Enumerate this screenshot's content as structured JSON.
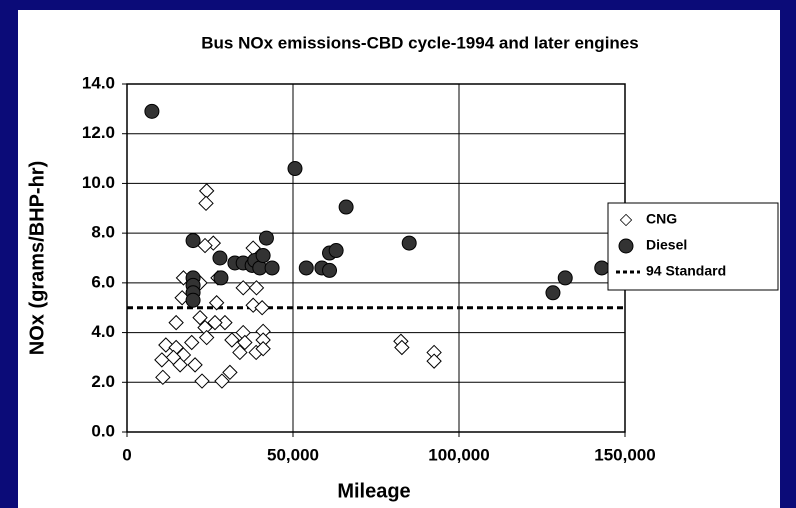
{
  "chart_data": {
    "type": "scatter",
    "title": "Bus NOx emissions-CBD cycle-1994 and later engines",
    "x_label": "Mileage",
    "y_label": "NOx (grams/BHP-hr)",
    "xlim": [
      0,
      150000
    ],
    "ylim": [
      0,
      14
    ],
    "xticks": [
      0,
      {
        "value": 50000,
        "label": "50,000"
      },
      {
        "value": 100000,
        "label": "100,000"
      },
      {
        "value": 150000,
        "label": "150,000"
      }
    ],
    "yticks": [
      {
        "value": 0,
        "label": "0.0"
      },
      {
        "value": 2,
        "label": "2.0"
      },
      {
        "value": 4,
        "label": "4.0"
      },
      {
        "value": 6,
        "label": "6.0"
      },
      {
        "value": 8,
        "label": "8.0"
      },
      {
        "value": 10,
        "label": "10.0"
      },
      {
        "value": 12,
        "label": "12.0"
      },
      {
        "value": 14,
        "label": "14.0"
      }
    ],
    "grid": true,
    "legend": "right",
    "series": [
      {
        "name": "CNG",
        "marker": "diamond",
        "color": "#ffffff",
        "x": [
          24000,
          23800,
          26000,
          23500,
          38000,
          17000,
          22000,
          27400,
          16600,
          27000,
          35000,
          39000,
          38000,
          40700,
          22000,
          29500,
          14800,
          23500,
          26500,
          35000,
          41000,
          31600,
          24000,
          35500,
          41000,
          19500,
          11700,
          14800,
          34000,
          38900,
          41000,
          17000,
          10500,
          14000,
          16000,
          20500,
          31000,
          10800,
          22600,
          28600,
          82500,
          82800,
          92500,
          92500
        ],
        "values": [
          9.7,
          9.2,
          7.6,
          7.5,
          7.4,
          6.2,
          6.0,
          6.2,
          5.4,
          5.2,
          5.8,
          5.8,
          5.1,
          5.0,
          4.6,
          4.4,
          4.4,
          4.2,
          4.4,
          4.0,
          4.05,
          3.7,
          3.8,
          3.6,
          3.7,
          3.6,
          3.5,
          3.4,
          3.2,
          3.2,
          3.35,
          3.1,
          2.9,
          3.0,
          2.7,
          2.7,
          2.4,
          2.2,
          2.05,
          2.05,
          3.65,
          3.4,
          3.2,
          2.85
        ]
      },
      {
        "name": "Diesel",
        "marker": "circle",
        "color": "#333333",
        "x": [
          7500,
          19900,
          19900,
          19900,
          19900,
          19900,
          28000,
          28300,
          32500,
          35000,
          37700,
          38500,
          40000,
          41000,
          42000,
          43700,
          50600,
          54000,
          58700,
          61000,
          61000,
          63000,
          66000,
          85000,
          128300,
          132000,
          143000
        ],
        "values": [
          12.9,
          7.7,
          6.2,
          5.9,
          5.6,
          5.3,
          7.0,
          6.2,
          6.8,
          6.8,
          6.7,
          6.9,
          6.6,
          7.1,
          7.8,
          6.6,
          10.6,
          6.6,
          6.6,
          6.5,
          7.2,
          7.3,
          9.05,
          7.6,
          5.6,
          6.2,
          6.6
        ]
      }
    ],
    "reference_line": {
      "name": "94 Standard",
      "value": 5,
      "color": "#000000"
    }
  }
}
